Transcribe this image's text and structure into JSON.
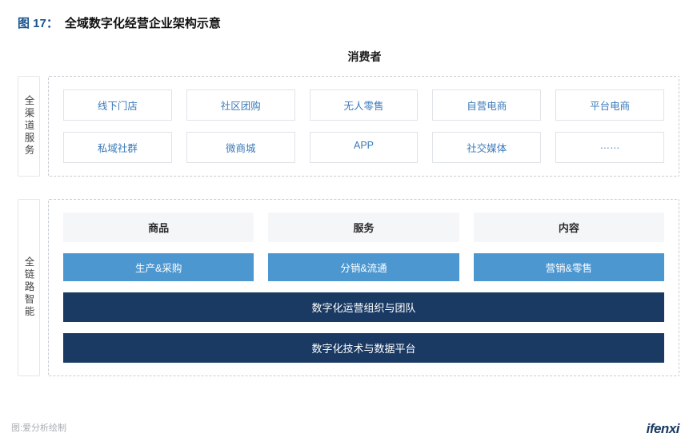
{
  "figure": {
    "number_label": "图 17：",
    "title": "全域数字化经营企业架构示意"
  },
  "consumer_label": "消费者",
  "colors": {
    "accent_text": "#1a5490",
    "channel_text": "#3b7ab8",
    "blue_box_bg": "#4d97d1",
    "dark_band_bg": "#1a3a63",
    "light_header_bg": "#f5f6f8",
    "dashed_border": "#c7ccd3"
  },
  "sections": {
    "channels": {
      "side_label": "全渠道服务",
      "row1": [
        "线下门店",
        "社区团购",
        "无人零售",
        "自营电商",
        "平台电商"
      ],
      "row2": [
        "私域社群",
        "微商城",
        "APP",
        "社交媒体",
        "……"
      ]
    },
    "intelligence": {
      "side_label": "全链路智能",
      "headers": [
        "商品",
        "服务",
        "内容"
      ],
      "blue_row": [
        "生产&采购",
        "分销&流通",
        "营销&零售"
      ],
      "dark_bands": [
        "数字化运营组织与团队",
        "数字化技术与数据平台"
      ]
    }
  },
  "footer": {
    "source": "图:爱分析绘制",
    "brand": "ifenxi"
  }
}
